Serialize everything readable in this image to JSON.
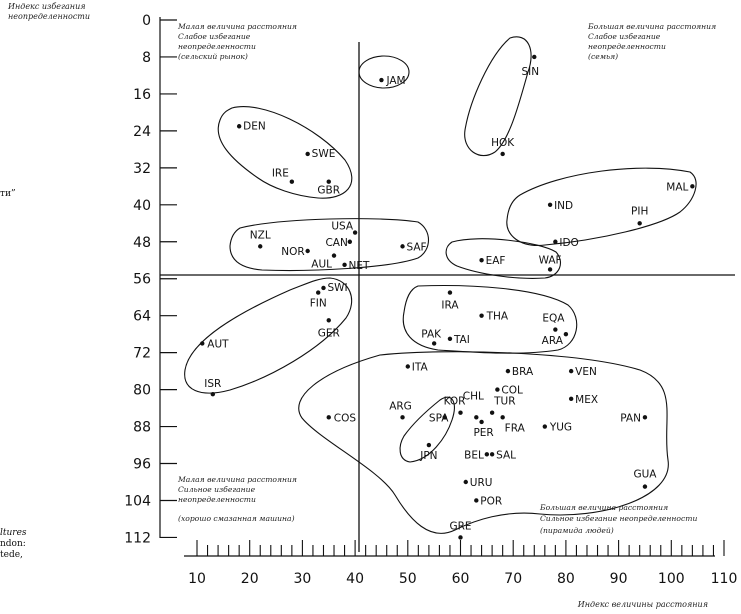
{
  "chart_data": {
    "type": "scatter",
    "xlabel": "Индекс величины расстояния",
    "ylabel": "Индекс избегания неопределенности",
    "xlim": [
      10,
      110
    ],
    "ylim": [
      0,
      112
    ],
    "x_ticks": [
      10,
      20,
      30,
      40,
      50,
      60,
      70,
      80,
      90,
      100,
      110
    ],
    "y_ticks": [
      0,
      8,
      16,
      24,
      32,
      40,
      48,
      56,
      64,
      72,
      80,
      88,
      96,
      104,
      112
    ],
    "y_inverted": true,
    "dividers": {
      "x": 44,
      "y": 56
    },
    "quadrants": {
      "top_left": [
        "Малая величина расстояния",
        "Слабое избегание",
        "неопределенности",
        "(сельский рынок)"
      ],
      "top_right": [
        "Большая величина расстояния",
        "Слабое избегание",
        "неопределенности",
        "(семья)"
      ],
      "bottom_left": [
        "Малая величина расстояния",
        "Сильное избегание",
        "неопределенности",
        "(хорошо смазанная машина)"
      ],
      "bottom_right": [
        "Большая величина расстояния",
        "Сильное избегание неопределенности",
        "(пирамида людей)"
      ]
    },
    "points": [
      {
        "label": "JAM",
        "x": 45,
        "y": 13
      },
      {
        "label": "SIN",
        "x": 74,
        "y": 8
      },
      {
        "label": "HOK",
        "x": 68,
        "y": 29
      },
      {
        "label": "DEN",
        "x": 18,
        "y": 23
      },
      {
        "label": "SWE",
        "x": 31,
        "y": 29
      },
      {
        "label": "IRE",
        "x": 28,
        "y": 35
      },
      {
        "label": "GBR",
        "x": 35,
        "y": 35
      },
      {
        "label": "MAL",
        "x": 104,
        "y": 36
      },
      {
        "label": "IND",
        "x": 77,
        "y": 40
      },
      {
        "label": "PIH",
        "x": 94,
        "y": 44
      },
      {
        "label": "IDO",
        "x": 78,
        "y": 48
      },
      {
        "label": "NZL",
        "x": 22,
        "y": 49
      },
      {
        "label": "USA",
        "x": 40,
        "y": 46
      },
      {
        "label": "CAN",
        "x": 39,
        "y": 48
      },
      {
        "label": "NOR",
        "x": 31,
        "y": 50
      },
      {
        "label": "NET",
        "x": 38,
        "y": 53
      },
      {
        "label": "AUL",
        "x": 36,
        "y": 51
      },
      {
        "label": "SAF",
        "x": 49,
        "y": 49
      },
      {
        "label": "EAF",
        "x": 64,
        "y": 52
      },
      {
        "label": "WAF",
        "x": 77,
        "y": 54
      },
      {
        "label": "SWI",
        "x": 34,
        "y": 58
      },
      {
        "label": "FIN",
        "x": 33,
        "y": 59
      },
      {
        "label": "GER",
        "x": 35,
        "y": 65
      },
      {
        "label": "AUT",
        "x": 11,
        "y": 70
      },
      {
        "label": "ISR",
        "x": 13,
        "y": 81
      },
      {
        "label": "IRA",
        "x": 58,
        "y": 59
      },
      {
        "label": "THA",
        "x": 64,
        "y": 64
      },
      {
        "label": "EQA",
        "x": 78,
        "y": 67
      },
      {
        "label": "PAK",
        "x": 55,
        "y": 70
      },
      {
        "label": "TAI",
        "x": 58,
        "y": 69
      },
      {
        "label": "ARA",
        "x": 80,
        "y": 68
      },
      {
        "label": "ITA",
        "x": 50,
        "y": 75
      },
      {
        "label": "BRA",
        "x": 69,
        "y": 76
      },
      {
        "label": "VEN",
        "x": 81,
        "y": 76
      },
      {
        "label": "COL",
        "x": 67,
        "y": 80
      },
      {
        "label": "MEX",
        "x": 81,
        "y": 82
      },
      {
        "label": "CHL",
        "x": 63,
        "y": 86
      },
      {
        "label": "TUR",
        "x": 66,
        "y": 85
      },
      {
        "label": "ARG",
        "x": 49,
        "y": 86
      },
      {
        "label": "KOR",
        "x": 60,
        "y": 85
      },
      {
        "label": "SPA",
        "x": 57,
        "y": 86
      },
      {
        "label": "PAN",
        "x": 95,
        "y": 86
      },
      {
        "label": "COS",
        "x": 35,
        "y": 86
      },
      {
        "label": "FRA",
        "x": 68,
        "y": 86
      },
      {
        "label": "PER",
        "x": 64,
        "y": 87
      },
      {
        "label": "YUG",
        "x": 76,
        "y": 88
      },
      {
        "label": "JPN",
        "x": 54,
        "y": 92
      },
      {
        "label": "BEL",
        "x": 65,
        "y": 94
      },
      {
        "label": "SAL",
        "x": 66,
        "y": 94
      },
      {
        "label": "GUA",
        "x": 95,
        "y": 101
      },
      {
        "label": "URU",
        "x": 61,
        "y": 100
      },
      {
        "label": "POR",
        "x": 63,
        "y": 104
      },
      {
        "label": "GRE",
        "x": 60,
        "y": 112
      }
    ]
  },
  "margin_fragments": [
    "ти”",
    "ltures",
    "ndon:",
    "tede,"
  ]
}
